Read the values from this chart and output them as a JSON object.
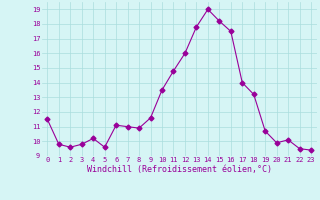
{
  "x": [
    0,
    1,
    2,
    3,
    4,
    5,
    6,
    7,
    8,
    9,
    10,
    11,
    12,
    13,
    14,
    15,
    16,
    17,
    18,
    19,
    20,
    21,
    22,
    23
  ],
  "y": [
    11.5,
    9.8,
    9.6,
    9.8,
    10.2,
    9.6,
    11.1,
    11.0,
    10.9,
    11.6,
    13.5,
    14.8,
    16.0,
    17.8,
    19.0,
    18.2,
    17.5,
    14.0,
    13.2,
    10.7,
    9.9,
    10.1,
    9.5,
    9.4
  ],
  "line_color": "#990099",
  "marker": "D",
  "marker_size": 2.5,
  "bg_color": "#d6f5f5",
  "grid_color": "#aadddd",
  "xlabel": "Windchill (Refroidissement éolien,°C)",
  "xlabel_color": "#990099",
  "tick_color": "#990099",
  "ylim": [
    9,
    19.5
  ],
  "yticks": [
    9,
    10,
    11,
    12,
    13,
    14,
    15,
    16,
    17,
    18,
    19
  ],
  "xlim": [
    -0.5,
    23.5
  ],
  "xticks": [
    0,
    1,
    2,
    3,
    4,
    5,
    6,
    7,
    8,
    9,
    10,
    11,
    12,
    13,
    14,
    15,
    16,
    17,
    18,
    19,
    20,
    21,
    22,
    23
  ]
}
